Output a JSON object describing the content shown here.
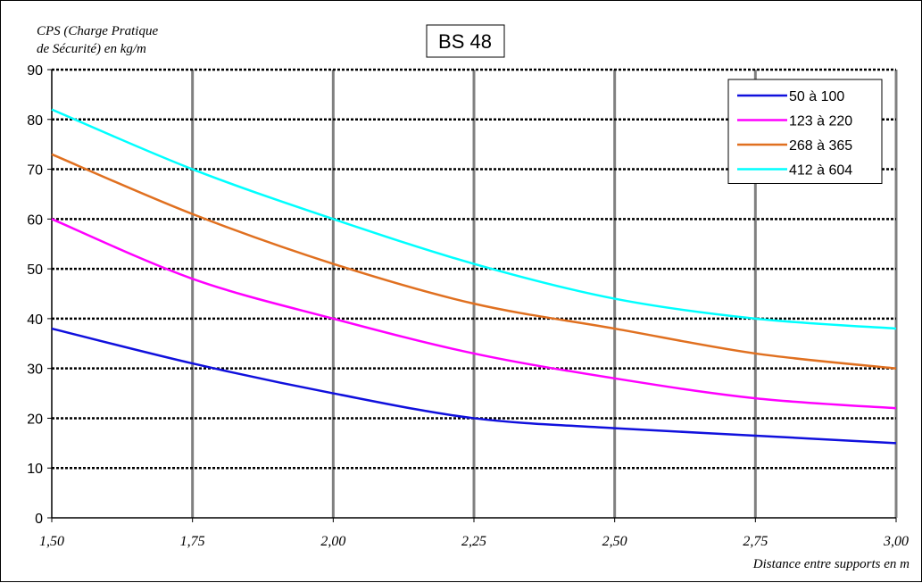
{
  "chart_data": {
    "type": "line",
    "title": "BS 48",
    "ylabel_line1": "CPS (Charge Pratique",
    "ylabel_line2": "de Sécurité) en kg/m",
    "xlabel": "Distance entre supports en m",
    "xlim": [
      1.5,
      3.0
    ],
    "ylim": [
      0,
      90
    ],
    "x_ticks": [
      1.5,
      1.75,
      2.0,
      2.25,
      2.5,
      2.75,
      3.0
    ],
    "x_tick_labels": [
      "1,50",
      "1,75",
      "2,00",
      "2,25",
      "2,50",
      "2,75",
      "3,00"
    ],
    "y_ticks": [
      0,
      10,
      20,
      30,
      40,
      50,
      60,
      70,
      80,
      90
    ],
    "y_tick_labels": [
      "0",
      "10",
      "20",
      "30",
      "40",
      "50",
      "60",
      "70",
      "80",
      "90"
    ],
    "grid": true,
    "legend_position": "top-right",
    "x": [
      1.5,
      1.75,
      2.0,
      2.25,
      2.5,
      2.75,
      3.0
    ],
    "series": [
      {
        "name": "50 à 100",
        "color": "#1010dd",
        "values": [
          38,
          31,
          25,
          20,
          18,
          16.5,
          15
        ]
      },
      {
        "name": "123 à 220",
        "color": "#ff00ff",
        "values": [
          60,
          48,
          40,
          33,
          28,
          24,
          22
        ]
      },
      {
        "name": "268 à 365",
        "color": "#e07020",
        "values": [
          73,
          61,
          51,
          43,
          38,
          33,
          30
        ]
      },
      {
        "name": "412 à 604",
        "color": "#00ffff",
        "values": [
          82,
          70,
          60,
          51,
          44,
          40,
          38
        ]
      }
    ]
  }
}
